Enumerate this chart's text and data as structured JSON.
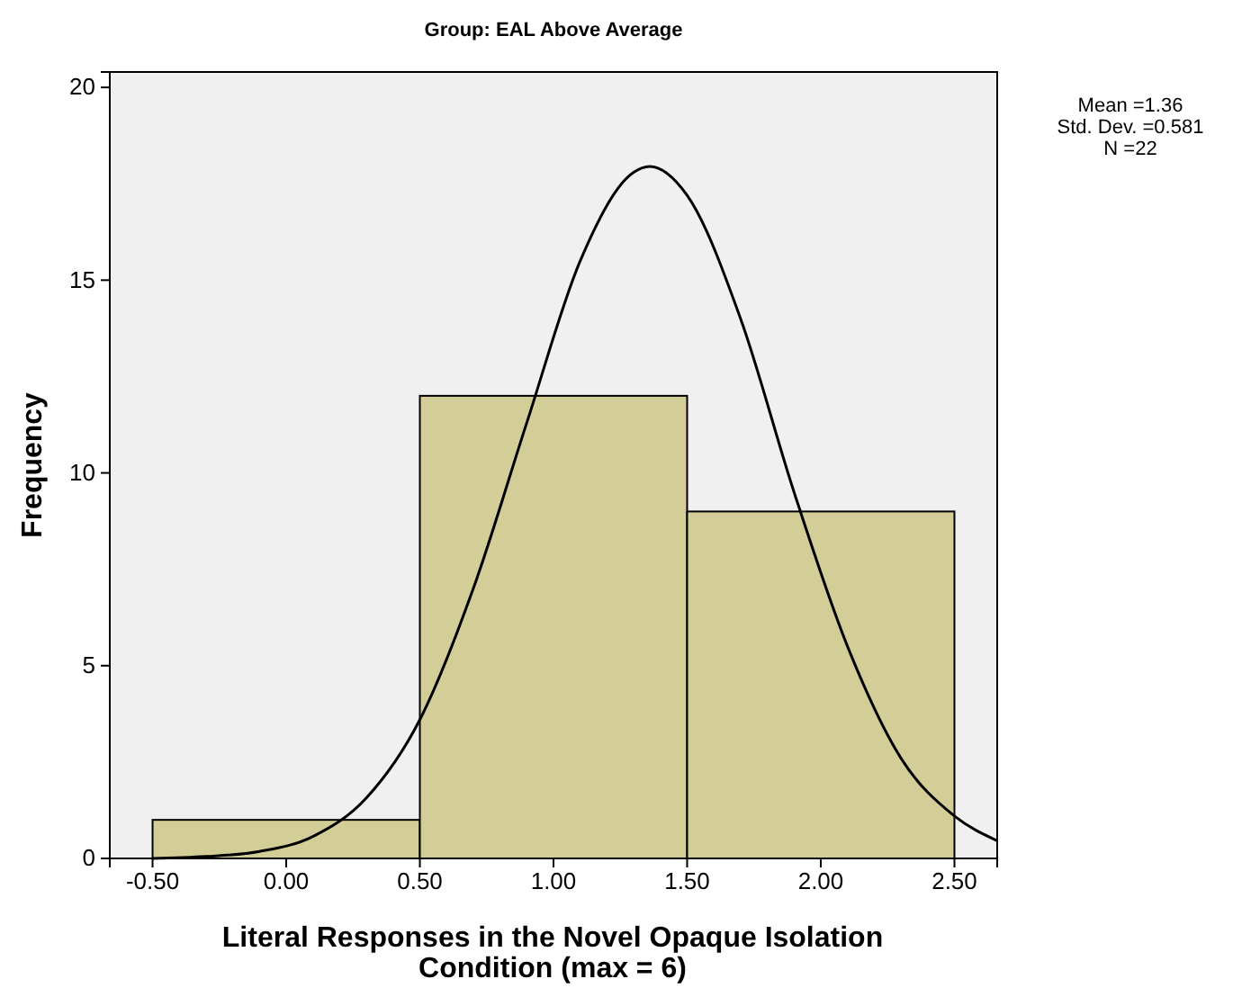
{
  "chart_data": {
    "type": "histogram",
    "title": "Group: EAL Above Average",
    "xlabel": "Literal Responses in the Novel Opaque Isolation Condition (max = 6)",
    "ylabel": "Frequency",
    "bins": [
      -0.5,
      0.5,
      1.5,
      2.5
    ],
    "values": [
      1,
      12,
      9
    ],
    "color": "#d3ce97",
    "series": [
      {
        "type": "line",
        "color": "#000000",
        "x": [
          -0.5,
          -0.3,
          -0.1,
          0.1,
          0.3,
          0.5,
          0.7,
          0.9,
          1.1,
          1.3,
          1.36,
          1.5,
          1.7,
          1.9,
          2.1,
          2.3,
          2.5,
          2.66
        ],
        "values": [
          0.0,
          0.05,
          0.18,
          0.57,
          1.57,
          3.6,
          7.0,
          11.3,
          15.5,
          17.8,
          17.95,
          17.2,
          14.0,
          9.5,
          5.5,
          2.6,
          1.1,
          0.46
        ]
      }
    ],
    "xlim": [
      -0.66,
      2.66
    ],
    "xticks": [
      {
        "value": -0.5,
        "label": "-0.50"
      },
      {
        "value": 0,
        "label": "0.00"
      },
      {
        "value": 0.5,
        "label": "0.50"
      },
      {
        "value": 1,
        "label": "1.00"
      },
      {
        "value": 1.5,
        "label": "1.50"
      },
      {
        "value": 2,
        "label": "2.00"
      },
      {
        "value": 2.5,
        "label": "2.50"
      }
    ],
    "ylim": [
      0,
      20.4
    ],
    "yticks": [
      0,
      5,
      10,
      15,
      20
    ],
    "grid": false,
    "annotations": [
      "Mean =1.36",
      "Std. Dev. =0.581",
      "N =22"
    ]
  }
}
